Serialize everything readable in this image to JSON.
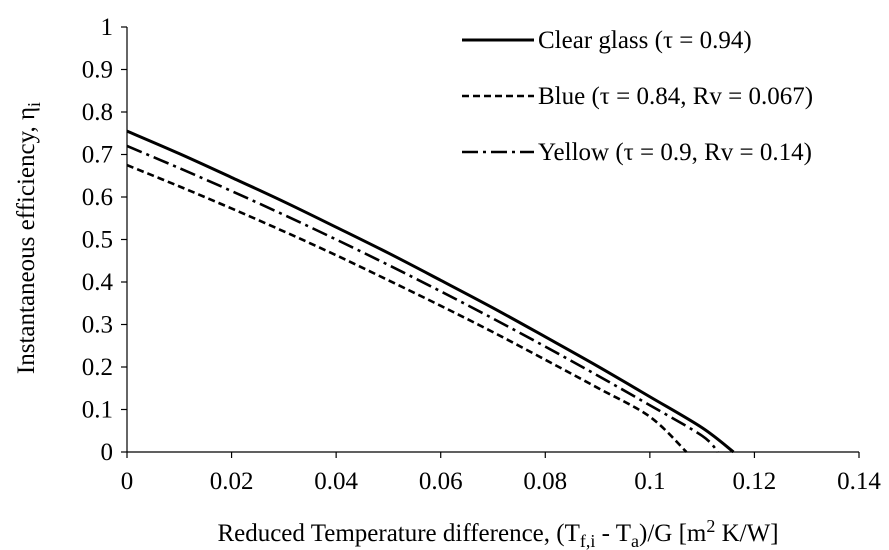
{
  "chart_data": {
    "type": "line",
    "xlabel": {
      "prefix": "Reduced Temperature difference, (T",
      "sub1": "f,i",
      "mid": " - T",
      "sub2": "a",
      "suffix1": ")/G [m",
      "sup": "2",
      "suffix2": " K/W]"
    },
    "ylabel": {
      "prefix": "Instantaneous efficiency, η",
      "sub": "i"
    },
    "xlim": [
      0,
      0.14
    ],
    "ylim": [
      0,
      1
    ],
    "x_ticks": [
      "0",
      "0.02",
      "0.04",
      "0.06",
      "0.08",
      "0.1",
      "0.12",
      "0.14"
    ],
    "y_ticks": [
      "0",
      "0.1",
      "0.2",
      "0.3",
      "0.4",
      "0.5",
      "0.6",
      "0.7",
      "0.8",
      "0.9",
      "1"
    ],
    "grid": false,
    "legend_position": "top-right",
    "series": [
      {
        "name": "Clear glass (τ = 0.94)",
        "style": "solid",
        "x": [
          0,
          0.01,
          0.02,
          0.03,
          0.04,
          0.05,
          0.06,
          0.07,
          0.08,
          0.09,
          0.1,
          0.11,
          0.116
        ],
        "y": [
          0.755,
          0.702,
          0.646,
          0.589,
          0.529,
          0.468,
          0.404,
          0.339,
          0.271,
          0.202,
          0.13,
          0.057,
          0.0
        ]
      },
      {
        "name": "Blue (τ = 0.84, Rv = 0.067)",
        "style": "dashed",
        "x": [
          0,
          0.01,
          0.02,
          0.03,
          0.04,
          0.05,
          0.06,
          0.07,
          0.08,
          0.09,
          0.1,
          0.107
        ],
        "y": [
          0.675,
          0.625,
          0.573,
          0.519,
          0.463,
          0.404,
          0.344,
          0.282,
          0.217,
          0.151,
          0.083,
          0.0
        ]
      },
      {
        "name": "Yellow (τ = 0.9, Rv = 0.14)",
        "style": "dashdot",
        "x": [
          0,
          0.01,
          0.02,
          0.03,
          0.04,
          0.05,
          0.06,
          0.07,
          0.08,
          0.09,
          0.1,
          0.11,
          0.113
        ],
        "y": [
          0.72,
          0.668,
          0.614,
          0.558,
          0.5,
          0.44,
          0.378,
          0.314,
          0.248,
          0.18,
          0.11,
          0.038,
          0.0
        ]
      }
    ],
    "colors": {
      "line": "#000000",
      "axis": "#000000",
      "background": "#ffffff"
    }
  }
}
